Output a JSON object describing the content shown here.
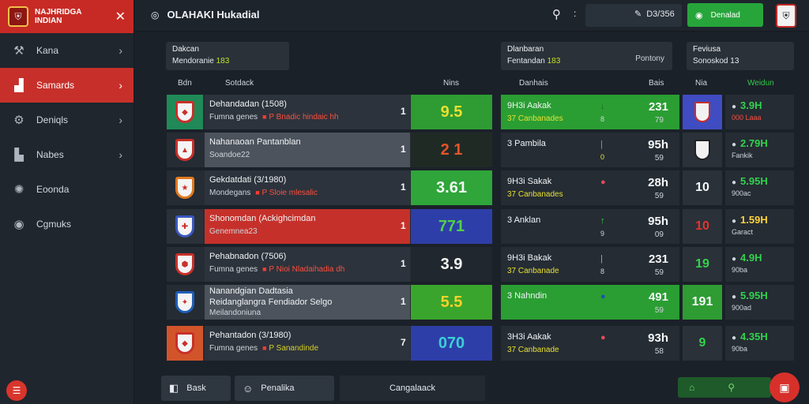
{
  "brand": {
    "name": "NAJHRIDGA INDIAN",
    "logo_icon": "club-crest-icon"
  },
  "sidebar": {
    "items": [
      {
        "label": "Kana",
        "icon": "tools-icon",
        "active": false,
        "chevron": true
      },
      {
        "label": "Samards",
        "icon": "chart-icon",
        "active": true,
        "chevron": true
      },
      {
        "label": "Deniqls",
        "icon": "settings-icon",
        "active": false,
        "chevron": true
      },
      {
        "label": "Nabes",
        "icon": "chart-icon",
        "active": false,
        "chevron": true
      },
      {
        "label": "Eoonda",
        "icon": "gear-icon",
        "active": false,
        "chevron": false
      },
      {
        "label": "Cgmuks",
        "icon": "globe-icon",
        "active": false,
        "chevron": false
      }
    ]
  },
  "topbar": {
    "title": "OLAHAKI Hukadial",
    "search_placeholder": "",
    "stat": "D3/356",
    "primary_label": "Denalad",
    "more": ":"
  },
  "cards": {
    "left": {
      "line1": "Dakcan",
      "line2_prefix": "Mendoranie ",
      "line2_value": "183"
    },
    "middle": {
      "line1": "Dlanbaran",
      "line2_prefix": "Fentandan ",
      "line2_value": "183",
      "right": "Pontony"
    },
    "right": {
      "line1": "Feviusa",
      "line2": "Sonoskod 13"
    }
  },
  "headers": {
    "left": [
      "Bdn",
      "Sotdack",
      "Nins"
    ],
    "middle": [
      "Danhais",
      "Bais"
    ],
    "right": [
      "Nia",
      "Weidun"
    ]
  },
  "rows": [
    {
      "team": "Dehandadan (1508)",
      "sub": "Fumna genes",
      "note": "P Bnadic hindaic hh",
      "pos": "1",
      "score": "9.5",
      "mid1": "9H3i Aakak",
      "mid2": "37 Canbanades",
      "mid_v1": "231",
      "mid_v2": "79",
      "badge": "",
      "right1": "3.9H",
      "right2": "000 Laaa"
    },
    {
      "team": "Nahanaoan Pantanblan",
      "sub": "Soandoe22",
      "note": "",
      "pos": "1",
      "score": "2 1",
      "mid1": "3 Pambila",
      "mid2": "",
      "mid_v1": "95h",
      "mid_v2": "59",
      "badge": "",
      "right1": "2.79H",
      "right2": "Fankik"
    },
    {
      "team": "Gekdatdati (3/1980)",
      "sub": "Mondegans",
      "note": "P Sloie mlesalic",
      "pos": "1",
      "score": "3.61",
      "mid1": "9H3i Sakak",
      "mid2": "37 Canbanades",
      "mid_v1": "28h",
      "mid_v2": "59",
      "badge": "10",
      "right1": "5.95H",
      "right2": "900ac"
    },
    {
      "team": "Shonomdan (Ackighcimdan",
      "sub": "Genemnea23",
      "note": "",
      "pos": "1",
      "score": "771",
      "mid1": "3 Anklan",
      "mid2": "",
      "mid_v1": "95h",
      "mid_v2": "09",
      "badge": "10",
      "right1": "1.59H",
      "right2": "Garact"
    },
    {
      "team": "Pehabnadon (7506)",
      "sub": "Fumna genes",
      "note": "P Nioi Nladaihadia dh",
      "pos": "1",
      "score": "3.9",
      "mid1": "9H3i Bakak",
      "mid2": "37 Canbanade",
      "mid_v1": "231",
      "mid_v2": "59",
      "badge": "19",
      "right1": "4.9H",
      "right2": "90ba"
    },
    {
      "team": "Nanandgian Dadtasia",
      "sub": "Reidanglangra Fendiador Selgo",
      "note": "Meilandoniuna",
      "pos": "1",
      "score": "5.5",
      "mid1": "3 Nahndin",
      "mid2": "",
      "mid_v1": "491",
      "mid_v2": "59",
      "badge": "191",
      "right1": "5.95H",
      "right2": "900ad"
    },
    {
      "team": "Pehantadon (3/1980)",
      "sub": "Fumna genes",
      "note": "P Sanandinde",
      "pos": "7",
      "score": "070",
      "mid1": "3H3i Aakak",
      "mid2": "37 Canbanade",
      "mid_v1": "93h",
      "mid_v2": "58",
      "badge": "9",
      "right1": "4.35H",
      "right2": "90ba"
    }
  ],
  "bottom": {
    "back": "Bask",
    "penalties": "Penalika",
    "center": "Cangalaack"
  },
  "colors": {
    "accent": "#c72a24",
    "green": "#27a53b",
    "bg": "#1b2129"
  }
}
